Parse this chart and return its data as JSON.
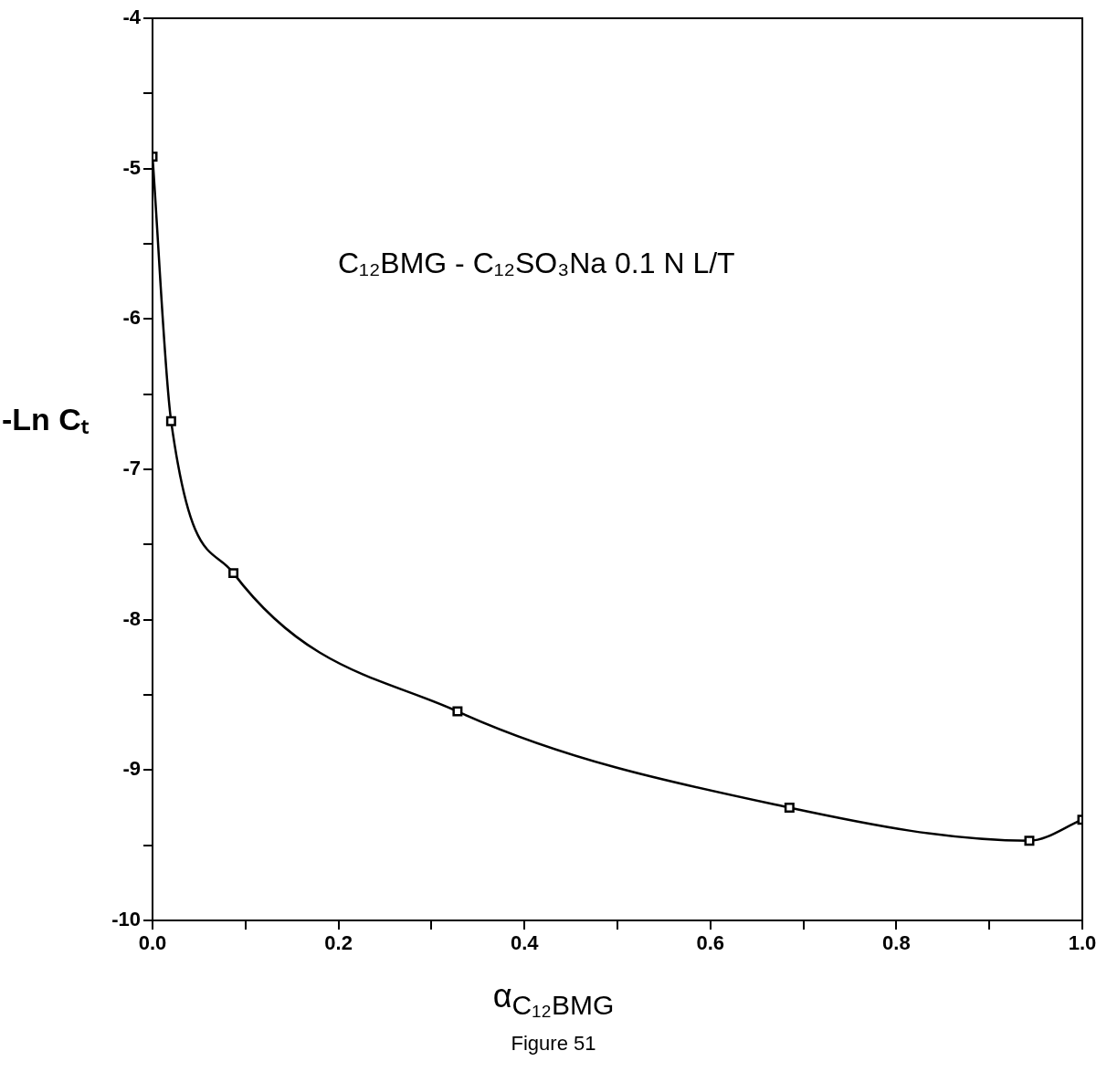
{
  "chart_data": {
    "type": "line",
    "xlabel": "α$_{C₁₂BMG}$",
    "ylabel": "-Ln Cₜ",
    "annotations": [
      "C₁₂BMG - C₁₂SO₃Na    0.1 N    L/T",
      "Figure 51"
    ],
    "x": [
      0,
      0.02,
      0.087,
      0.328,
      0.685,
      0.943,
      1.0
    ],
    "series": [
      {
        "color": "#000000",
        "values": [
          -4.92,
          -6.68,
          -7.69,
          -8.61,
          -9.25,
          -9.47,
          -9.33
        ]
      }
    ],
    "xlim": [
      0,
      1
    ],
    "xticks": [
      {
        "value": 0,
        "label": "0.0"
      },
      {
        "value": 0.1,
        "label": null
      },
      0.2,
      {
        "value": 0.3,
        "label": null
      },
      0.4,
      {
        "value": 0.5,
        "label": null
      },
      0.6,
      {
        "value": 0.7,
        "label": null
      },
      0.8,
      {
        "value": 0.9,
        "label": null
      },
      {
        "value": 1,
        "label": "1.0"
      }
    ],
    "ylim": [
      -10,
      -4
    ],
    "yticks": [
      -10,
      {
        "value": -9.5,
        "label": null
      },
      -9,
      {
        "value": -8.5,
        "label": null
      },
      -8,
      {
        "value": -7.5,
        "label": null
      },
      -7,
      {
        "value": -6.5,
        "label": null
      },
      -6,
      {
        "value": -5.5,
        "label": null
      },
      -5,
      {
        "value": -4.5,
        "label": null
      },
      -4
    ],
    "grid": false,
    "legend": false,
    "marker": "square",
    "line_style": "solid"
  }
}
